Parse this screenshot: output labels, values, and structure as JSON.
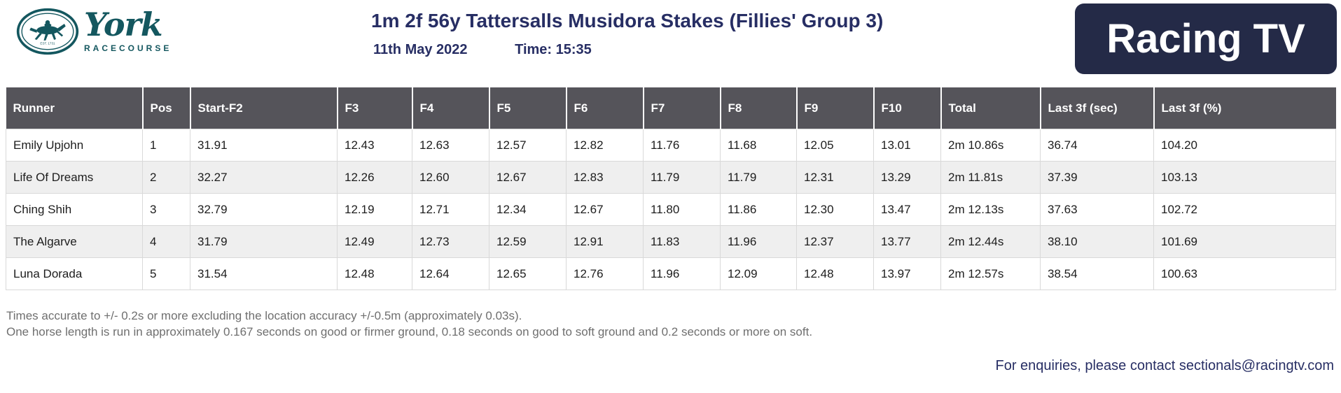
{
  "header": {
    "york_logo": {
      "name": "York",
      "subtitle": "RACECOURSE",
      "est": "EST. 1731"
    },
    "title": "1m 2f 56y Tattersalls Musidora Stakes (Fillies' Group 3)",
    "date": "11th May 2022",
    "time": "Time: 15:35",
    "racingtv_logo_text": "Racing TV"
  },
  "table": {
    "columns": [
      "Runner",
      "Pos",
      "Start-F2",
      "F3",
      "F4",
      "F5",
      "F6",
      "F7",
      "F8",
      "F9",
      "F10",
      "Total",
      "Last 3f (sec)",
      "Last 3f (%)"
    ],
    "rows": [
      [
        "Emily Upjohn",
        "1",
        "31.91",
        "12.43",
        "12.63",
        "12.57",
        "12.82",
        "11.76",
        "11.68",
        "12.05",
        "13.01",
        "2m 10.86s",
        "36.74",
        "104.20"
      ],
      [
        "Life Of Dreams",
        "2",
        "32.27",
        "12.26",
        "12.60",
        "12.67",
        "12.83",
        "11.79",
        "11.79",
        "12.31",
        "13.29",
        "2m 11.81s",
        "37.39",
        "103.13"
      ],
      [
        "Ching Shih",
        "3",
        "32.79",
        "12.19",
        "12.71",
        "12.34",
        "12.67",
        "11.80",
        "11.86",
        "12.30",
        "13.47",
        "2m 12.13s",
        "37.63",
        "102.72"
      ],
      [
        "The Algarve",
        "4",
        "31.79",
        "12.49",
        "12.73",
        "12.59",
        "12.91",
        "11.83",
        "11.96",
        "12.37",
        "13.77",
        "2m 12.44s",
        "38.10",
        "101.69"
      ],
      [
        "Luna Dorada",
        "5",
        "31.54",
        "12.48",
        "12.64",
        "12.65",
        "12.76",
        "11.96",
        "12.09",
        "12.48",
        "13.97",
        "2m 12.57s",
        "38.54",
        "100.63"
      ]
    ]
  },
  "footer": {
    "note1": "Times accurate to +/- 0.2s or more excluding the location accuracy +/-0.5m (approximately 0.03s).",
    "note2": "One horse length is run in approximately 0.167 seconds on good or firmer ground, 0.18 seconds on good to soft ground and 0.2 seconds or more on soft.",
    "enquiries": "For enquiries, please contact sectionals@racingtv.com"
  },
  "colors": {
    "navy_text": "#272e64",
    "header_row_bg": "#55545a",
    "alt_row_bg": "#efefef",
    "york_teal": "#14575f",
    "racingtv_bg": "#242a47",
    "note_gray": "#6f6f6f"
  }
}
